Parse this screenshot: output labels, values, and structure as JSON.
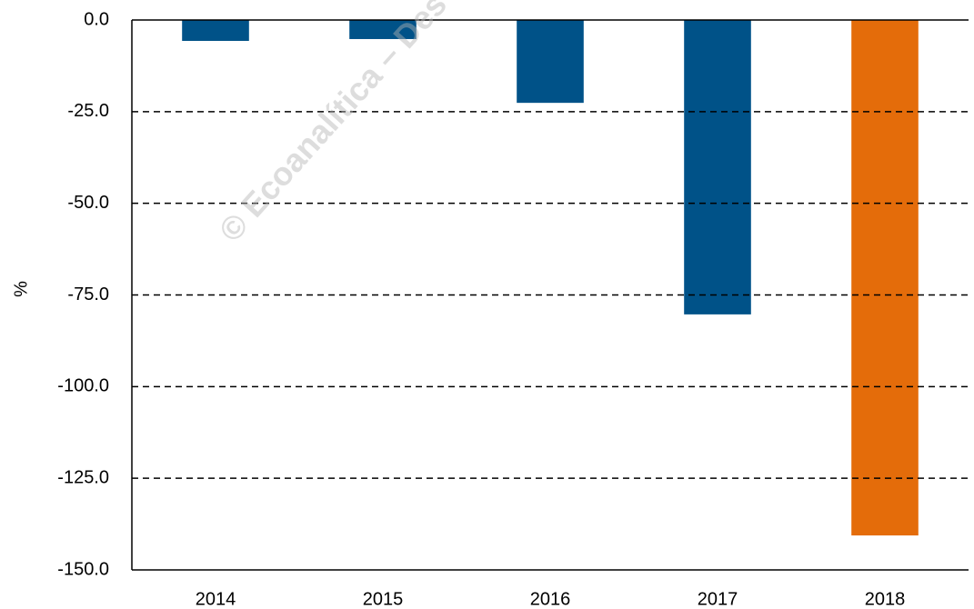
{
  "chart_data": {
    "type": "bar",
    "y_label": "%",
    "watermark": "© Ecoanalítica – Des",
    "categories": [
      "2014",
      "2015",
      "2016",
      "2017",
      "2018"
    ],
    "values": [
      -5.7,
      -5.2,
      -22.6,
      -80.3,
      -140.6
    ],
    "colors": [
      "#005288",
      "#005288",
      "#005288",
      "#005288",
      "#e46c0a"
    ],
    "ylim": [
      -150,
      0
    ],
    "yticks": [
      {
        "value": 0,
        "label": "0.0"
      },
      {
        "value": -25,
        "label": "-25.0"
      },
      {
        "value": -50,
        "label": "-50.0"
      },
      {
        "value": -75,
        "label": "-75.0"
      },
      {
        "value": -100,
        "label": "-100.0"
      },
      {
        "value": -125,
        "label": "-125.0"
      },
      {
        "value": -150,
        "label": "-150.0"
      }
    ],
    "grid": true
  }
}
